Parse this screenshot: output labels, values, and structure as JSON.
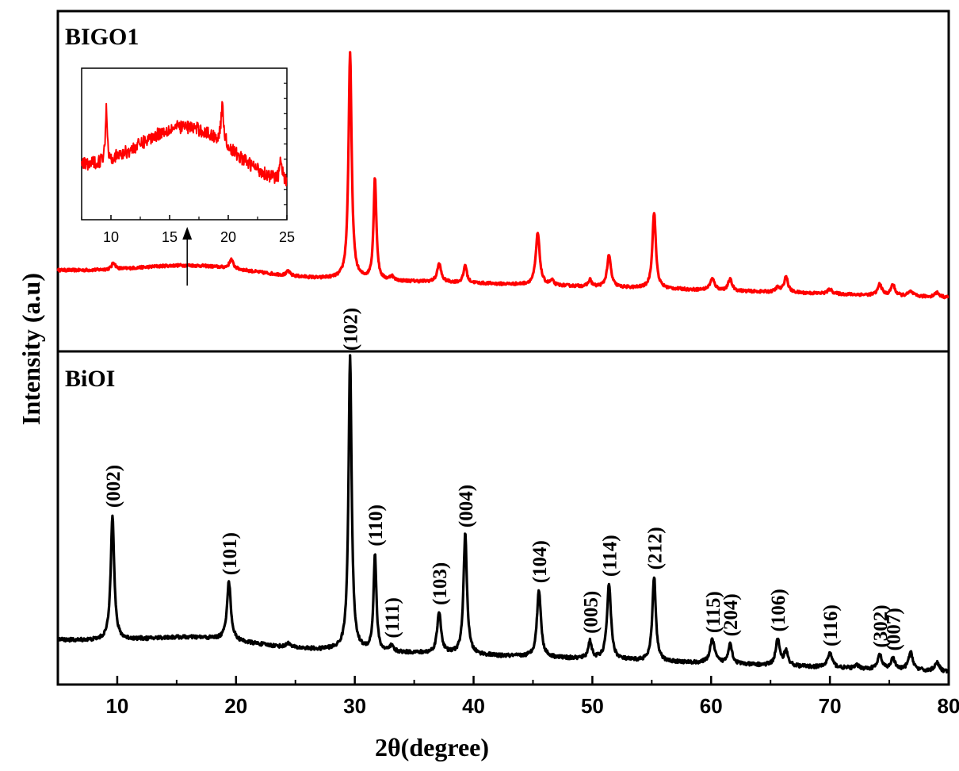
{
  "chart_data": {
    "type": "line",
    "xlabel": "2θ(degree)",
    "ylabel": "Intensity (a.u)",
    "xlim": [
      5,
      80
    ],
    "x_ticks": [
      10,
      20,
      30,
      40,
      50,
      60,
      70,
      80
    ],
    "y_ticks_labeled": false,
    "colors": {
      "BIGO1": "#ff0000",
      "BiOI": "#000000",
      "axis": "#000000"
    },
    "panels": [
      {
        "label": "BIGO1",
        "color": "#ff0000",
        "background": {
          "start": 0.18,
          "end": 0.06
        },
        "humps": [
          {
            "center": 16.5,
            "width": 4.5,
            "height": 0.04
          }
        ],
        "peaks": [
          {
            "x": 9.7,
            "height": 0.03,
            "width": 0.22
          },
          {
            "x": 19.6,
            "height": 0.04,
            "width": 0.25
          },
          {
            "x": 24.4,
            "height": 0.02,
            "width": 0.2
          },
          {
            "x": 29.6,
            "height": 1.0,
            "width": 0.2
          },
          {
            "x": 31.7,
            "height": 0.45,
            "width": 0.18
          },
          {
            "x": 33.1,
            "height": 0.02,
            "width": 0.2
          },
          {
            "x": 37.1,
            "height": 0.08,
            "width": 0.25
          },
          {
            "x": 39.3,
            "height": 0.08,
            "width": 0.2
          },
          {
            "x": 45.4,
            "height": 0.23,
            "width": 0.25
          },
          {
            "x": 46.6,
            "height": 0.02,
            "width": 0.2
          },
          {
            "x": 49.8,
            "height": 0.03,
            "width": 0.2
          },
          {
            "x": 51.4,
            "height": 0.14,
            "width": 0.25
          },
          {
            "x": 55.2,
            "height": 0.34,
            "width": 0.22
          },
          {
            "x": 60.1,
            "height": 0.05,
            "width": 0.3
          },
          {
            "x": 61.6,
            "height": 0.05,
            "width": 0.25
          },
          {
            "x": 65.6,
            "height": 0.02,
            "width": 0.25
          },
          {
            "x": 66.3,
            "height": 0.07,
            "width": 0.25
          },
          {
            "x": 70.0,
            "height": 0.02,
            "width": 0.3
          },
          {
            "x": 74.2,
            "height": 0.05,
            "width": 0.25
          },
          {
            "x": 75.3,
            "height": 0.05,
            "width": 0.25
          },
          {
            "x": 76.8,
            "height": 0.02,
            "width": 0.3
          },
          {
            "x": 79.0,
            "height": 0.02,
            "width": 0.3
          }
        ],
        "inset": {
          "xlim": [
            7.5,
            25
          ],
          "x_ticks": [
            10,
            15,
            20,
            25
          ],
          "arrow_x": 16.5,
          "background": {
            "start": 0.32,
            "end": 0.18
          },
          "humps": [
            {
              "center": 16.5,
              "width": 3.8,
              "height": 0.38
            }
          ],
          "peaks": [
            {
              "x": 9.6,
              "height": 0.42,
              "width": 0.12
            },
            {
              "x": 19.5,
              "height": 0.28,
              "width": 0.2
            },
            {
              "x": 24.5,
              "height": 0.18,
              "width": 0.15
            }
          ]
        }
      },
      {
        "label": "BiOI",
        "color": "#000000",
        "background": {
          "start": 0.11,
          "end": 0.0
        },
        "humps": [
          {
            "center": 16.5,
            "width": 4.0,
            "height": 0.025
          }
        ],
        "peaks": [
          {
            "x": 9.6,
            "height": 0.43,
            "width": 0.22,
            "hkl": "(002)"
          },
          {
            "x": 19.4,
            "height": 0.2,
            "width": 0.25,
            "hkl": "(101)"
          },
          {
            "x": 24.4,
            "height": 0.015,
            "width": 0.2
          },
          {
            "x": 29.6,
            "height": 1.0,
            "width": 0.2,
            "hkl": "(102)"
          },
          {
            "x": 31.7,
            "height": 0.33,
            "width": 0.18,
            "hkl": "(110)"
          },
          {
            "x": 33.1,
            "height": 0.02,
            "width": 0.2,
            "hkl": "(111)"
          },
          {
            "x": 37.1,
            "height": 0.14,
            "width": 0.25,
            "hkl": "(103)"
          },
          {
            "x": 39.3,
            "height": 0.41,
            "width": 0.22,
            "hkl": "(004)"
          },
          {
            "x": 45.5,
            "height": 0.23,
            "width": 0.25,
            "hkl": "(104)"
          },
          {
            "x": 49.8,
            "height": 0.06,
            "width": 0.22,
            "hkl": "(005)"
          },
          {
            "x": 51.4,
            "height": 0.26,
            "width": 0.25,
            "hkl": "(114)"
          },
          {
            "x": 55.2,
            "height": 0.29,
            "width": 0.22,
            "hkl": "(212)"
          },
          {
            "x": 60.1,
            "height": 0.08,
            "width": 0.3,
            "hkl": "(115)"
          },
          {
            "x": 61.6,
            "height": 0.07,
            "width": 0.25,
            "hkl": "(204)"
          },
          {
            "x": 65.6,
            "height": 0.09,
            "width": 0.25,
            "hkl": "(106)"
          },
          {
            "x": 66.3,
            "height": 0.05,
            "width": 0.25
          },
          {
            "x": 70.0,
            "height": 0.05,
            "width": 0.3,
            "hkl": "(116)"
          },
          {
            "x": 72.3,
            "height": 0.01,
            "width": 0.3
          },
          {
            "x": 74.2,
            "height": 0.05,
            "width": 0.25,
            "hkl": "(302)"
          },
          {
            "x": 75.3,
            "height": 0.04,
            "width": 0.25,
            "hkl": "(007)"
          },
          {
            "x": 76.8,
            "height": 0.06,
            "width": 0.3
          },
          {
            "x": 79.0,
            "height": 0.03,
            "width": 0.3
          }
        ]
      }
    ]
  }
}
